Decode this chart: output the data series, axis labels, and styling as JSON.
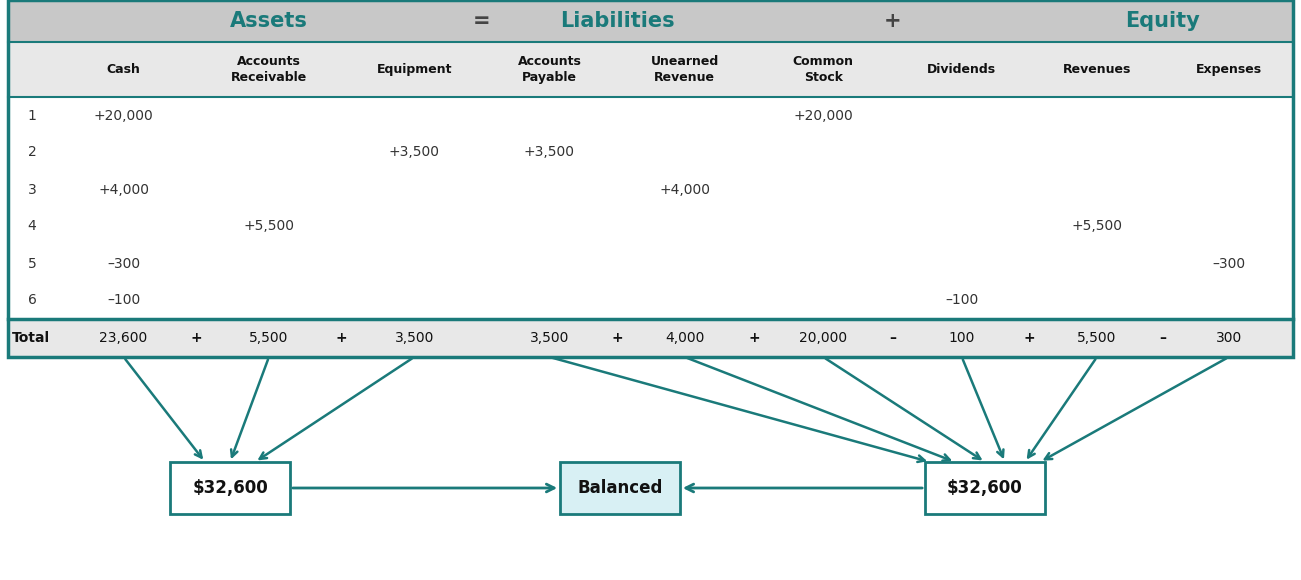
{
  "title_bg_color": "#c8c8c8",
  "header_row_color": "#e8e8e8",
  "teal_color": "#1a7a7a",
  "teal_border": "#1a7a7a",
  "box_fill_center": "#d8f0f4",
  "col_headers": [
    "Cash",
    "Accounts\nReceivable",
    "Equipment",
    "Accounts\nPayable",
    "Unearned\nRevenue",
    "Common\nStock",
    "Dividends",
    "Revenues",
    "Expenses"
  ],
  "row_labels": [
    "1",
    "2",
    "3",
    "4",
    "5",
    "6"
  ],
  "transactions": [
    [
      "+20,000",
      "",
      "",
      "",
      "",
      "+20,000",
      "",
      "",
      ""
    ],
    [
      "",
      "",
      "+3,500",
      "+3,500",
      "",
      "",
      "",
      "",
      ""
    ],
    [
      "+4,000",
      "",
      "",
      "",
      "+4,000",
      "",
      "",
      "",
      ""
    ],
    [
      "",
      "+5,500",
      "",
      "",
      "",
      "",
      "",
      "+5,500",
      ""
    ],
    [
      "–300",
      "",
      "",
      "",
      "",
      "",
      "",
      "",
      "–300"
    ],
    [
      "–100",
      "",
      "",
      "",
      "",
      "",
      "–100",
      "",
      ""
    ]
  ],
  "left_box_text": "$32,600",
  "center_box_text": "Balanced",
  "right_box_text": "$32,600",
  "figsize": [
    13.01,
    5.8
  ],
  "dpi": 100
}
